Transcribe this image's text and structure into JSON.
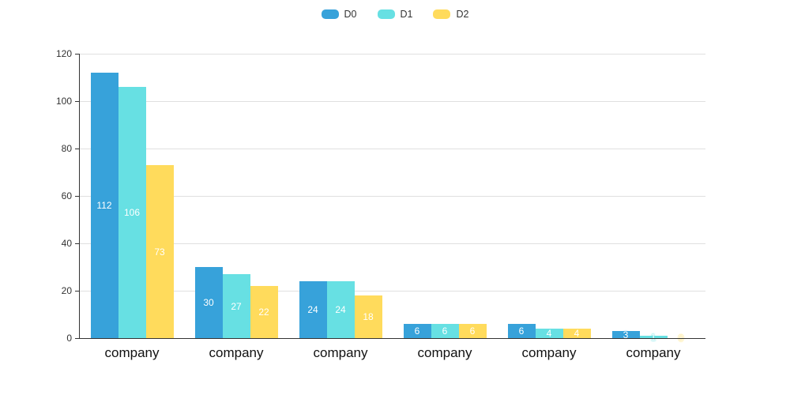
{
  "chart": {
    "background": "#ffffff",
    "axis_color": "#333333",
    "gridline_color": "#e0e0e0",
    "value_label_color": "#ffffff",
    "category_label_color": "#111111"
  },
  "chart_data": {
    "type": "bar",
    "title": "",
    "xlabel": "",
    "ylabel": "",
    "categories": [
      "company",
      "company",
      "company",
      "company",
      "company",
      "company"
    ],
    "series": [
      {
        "name": "D0",
        "color": "#37a2da",
        "values": [
          112,
          30,
          24,
          6,
          6,
          3
        ]
      },
      {
        "name": "D1",
        "color": "#67e0e3",
        "values": [
          106,
          27,
          24,
          6,
          4,
          1
        ]
      },
      {
        "name": "D2",
        "color": "#ffdb5c",
        "values": [
          73,
          22,
          18,
          6,
          4,
          0
        ]
      }
    ],
    "ylim": [
      0,
      120
    ],
    "yticks": [
      0,
      20,
      40,
      60,
      80,
      100,
      120
    ],
    "grid": true,
    "legend_position": "top-center",
    "value_labels": "inside-center-white"
  }
}
